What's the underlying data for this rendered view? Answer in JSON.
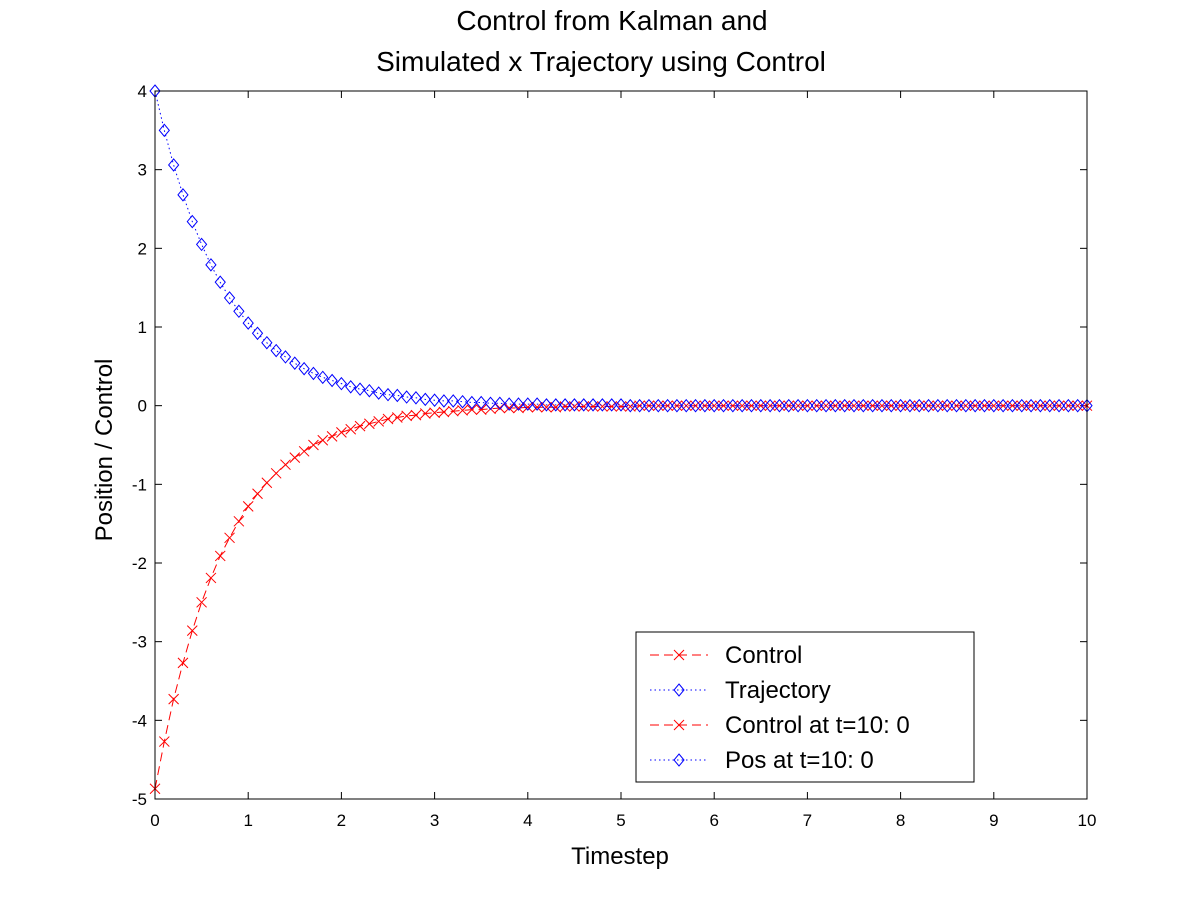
{
  "chart_data": {
    "type": "line",
    "title": [
      "Control from Kalman and",
      "Simulated x Trajectory using Control"
    ],
    "xlabel": "Timestep",
    "ylabel": "Position / Control",
    "xlim": [
      0,
      10
    ],
    "ylim": [
      -5,
      4
    ],
    "xticks": [
      "0",
      "1",
      "2",
      "3",
      "4",
      "5",
      "6",
      "7",
      "8",
      "9",
      "10"
    ],
    "yticks": [
      "4",
      "3",
      "2",
      "1",
      "0",
      "-1",
      "-2",
      "-3",
      "-4",
      "-5"
    ],
    "grid": false,
    "legend_position": "bottom-right",
    "x": [
      0,
      0.1,
      0.2,
      0.3,
      0.4,
      0.5,
      0.6,
      0.7,
      0.8,
      0.9,
      1.0,
      1.1,
      1.2,
      1.3,
      1.4,
      1.5,
      1.6,
      1.7,
      1.8,
      1.9,
      2.0,
      2.1,
      2.2,
      2.3,
      2.4,
      2.5,
      2.6,
      2.7,
      2.8,
      2.9,
      3.0,
      3.1,
      3.2,
      3.3,
      3.4,
      3.5,
      3.6,
      3.7,
      3.8,
      3.9,
      4.0,
      4.1,
      4.2,
      4.3,
      4.4,
      4.5,
      4.6,
      4.7,
      4.8,
      4.9,
      5.0,
      5.1,
      5.2,
      5.3,
      5.4,
      5.5,
      5.6,
      5.7,
      5.8,
      5.9,
      6.0,
      6.1,
      6.2,
      6.3,
      6.4,
      6.5,
      6.6,
      6.7,
      6.8,
      6.9,
      7.0,
      7.1,
      7.2,
      7.3,
      7.4,
      7.5,
      7.6,
      7.7,
      7.8,
      7.9,
      8.0,
      8.1,
      8.2,
      8.3,
      8.4,
      8.5,
      8.6,
      8.7,
      8.8,
      8.9,
      9.0,
      9.1,
      9.2,
      9.3,
      9.4,
      9.5,
      9.6,
      9.7,
      9.8,
      9.9,
      10.0
    ],
    "series": [
      {
        "name": "Control",
        "color": "#ff0000",
        "line_style": "dashed",
        "marker": "x",
        "values": [
          -4.87,
          -4.27,
          -3.73,
          -3.27,
          -2.86,
          -2.5,
          -2.19,
          -1.91,
          -1.68,
          -1.47,
          -1.28,
          -1.12,
          -0.98,
          -0.86,
          -0.75,
          -0.66,
          -0.58,
          -0.5,
          -0.44,
          -0.39,
          -0.34,
          -0.3,
          -0.26,
          -0.23,
          -0.2,
          -0.17,
          -0.15,
          -0.13,
          -0.12,
          -0.1,
          -0.09,
          -0.08,
          -0.07,
          -0.06,
          -0.05,
          -0.05,
          -0.04,
          -0.03,
          -0.03,
          -0.03,
          -0.02,
          -0.02,
          -0.02,
          -0.02,
          -0.01,
          -0.01,
          -0.01,
          -0.01,
          -0.01,
          -0.01,
          -0.01,
          -0.01,
          0,
          0,
          0,
          0,
          0,
          0,
          0,
          0,
          0,
          0,
          0,
          0,
          0,
          0,
          0,
          0,
          0,
          0,
          0,
          0,
          0,
          0,
          0,
          0,
          0,
          0,
          0,
          0,
          0,
          0,
          0,
          0,
          0,
          0,
          0,
          0,
          0,
          0,
          0,
          0,
          0,
          0,
          0,
          0,
          0,
          0,
          0,
          0,
          0
        ]
      },
      {
        "name": "Trajectory",
        "color": "#0000ff",
        "line_style": "dotted",
        "marker": "diamond",
        "values": [
          4.0,
          3.5,
          3.06,
          2.68,
          2.34,
          2.05,
          1.79,
          1.57,
          1.37,
          1.2,
          1.05,
          0.92,
          0.8,
          0.7,
          0.62,
          0.54,
          0.47,
          0.41,
          0.36,
          0.32,
          0.28,
          0.24,
          0.21,
          0.19,
          0.16,
          0.14,
          0.13,
          0.11,
          0.1,
          0.08,
          0.07,
          0.06,
          0.06,
          0.05,
          0.04,
          0.04,
          0.03,
          0.03,
          0.02,
          0.02,
          0.02,
          0.02,
          0.01,
          0.01,
          0.01,
          0.01,
          0.01,
          0.01,
          0.01,
          0.01,
          0.01,
          0,
          0,
          0,
          0,
          0,
          0,
          0,
          0,
          0,
          0,
          0,
          0,
          0,
          0,
          0,
          0,
          0,
          0,
          0,
          0,
          0,
          0,
          0,
          0,
          0,
          0,
          0,
          0,
          0,
          0,
          0,
          0,
          0,
          0,
          0,
          0,
          0,
          0,
          0,
          0,
          0,
          0,
          0,
          0,
          0,
          0,
          0,
          0,
          0,
          0
        ]
      }
    ],
    "legend": [
      {
        "label": "Control",
        "color": "#ff0000",
        "line_style": "dashed",
        "marker": "x"
      },
      {
        "label": "Trajectory",
        "color": "#0000ff",
        "line_style": "dotted",
        "marker": "diamond"
      },
      {
        "label": "Control at t=10:  0",
        "color": "#ff0000",
        "line_style": "dashed",
        "marker": "x"
      },
      {
        "label": "Pos at t=10:  0",
        "color": "#0000ff",
        "line_style": "dotted",
        "marker": "diamond"
      }
    ]
  }
}
